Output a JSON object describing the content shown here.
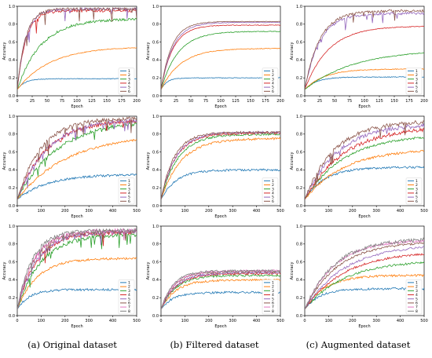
{
  "captions": [
    "(a) Original dataset",
    "(b) Filtered dataset",
    "(c) Augmented dataset"
  ],
  "colors": [
    "#1f77b4",
    "#ff7f0e",
    "#2ca02c",
    "#d62728",
    "#9467bd",
    "#8c564b",
    "#e377c2",
    "#7f7f7f"
  ],
  "chart_data": [
    {
      "type": "line",
      "xlabel": "Epoch",
      "ylabel": "Accuracy",
      "xlim": [
        0,
        200
      ],
      "ylim": [
        0,
        1.0
      ],
      "xticks": [
        "0",
        "25",
        "50",
        "75",
        "100",
        "125",
        "150",
        "175",
        "200"
      ],
      "yticks": [
        "0.0",
        "0.2",
        "0.4",
        "0.6",
        "0.8",
        "1.0"
      ],
      "grid": false,
      "legend": "bottom-right",
      "legend_labels": [
        "1",
        "2",
        "3",
        "4",
        "5",
        "6"
      ],
      "series": [
        {
          "final": 0.19,
          "k": 0.08
        },
        {
          "final": 0.55,
          "k": 0.018
        },
        {
          "final": 0.86,
          "k": 0.025
        },
        {
          "final": 0.95,
          "k": 0.07
        },
        {
          "final": 0.97,
          "k": 0.07
        },
        {
          "final": 0.97,
          "k": 0.075
        }
      ]
    },
    {
      "type": "line",
      "xlabel": "Epoch",
      "ylabel": "Accuracy",
      "xlim": [
        0,
        200
      ],
      "ylim": [
        0,
        1.0
      ],
      "xticks": [
        "0",
        "25",
        "50",
        "75",
        "100",
        "125",
        "150",
        "175",
        "200"
      ],
      "yticks": [
        "0.0",
        "0.2",
        "0.4",
        "0.6",
        "0.8",
        "1.0"
      ],
      "grid": false,
      "legend": "bottom-right",
      "legend_labels": [
        "1",
        "2",
        "3",
        "4",
        "5",
        "6"
      ],
      "series": [
        {
          "final": 0.2,
          "k": 0.1
        },
        {
          "final": 0.53,
          "k": 0.03
        },
        {
          "final": 0.72,
          "k": 0.035
        },
        {
          "final": 0.79,
          "k": 0.05
        },
        {
          "final": 0.82,
          "k": 0.05
        },
        {
          "final": 0.83,
          "k": 0.055
        }
      ]
    },
    {
      "type": "line",
      "xlabel": "Epoch",
      "ylabel": "Accuracy",
      "xlim": [
        0,
        200
      ],
      "ylim": [
        0,
        1.0
      ],
      "xticks": [
        "0",
        "25",
        "50",
        "75",
        "100",
        "125",
        "150",
        "175",
        "200"
      ],
      "yticks": [
        "0.0",
        "0.2",
        "0.4",
        "0.6",
        "0.8",
        "1.0"
      ],
      "grid": false,
      "legend": "bottom-right",
      "legend_labels": [
        "1",
        "2",
        "3",
        "4",
        "5",
        "6"
      ],
      "series": [
        {
          "final": 0.21,
          "k": 0.05
        },
        {
          "final": 0.3,
          "k": 0.03
        },
        {
          "final": 0.52,
          "k": 0.012
        },
        {
          "final": 0.78,
          "k": 0.025
        },
        {
          "final": 0.92,
          "k": 0.04
        },
        {
          "final": 0.95,
          "k": 0.04
        }
      ]
    },
    {
      "type": "line",
      "xlabel": "Epoch",
      "ylabel": "Accuracy",
      "xlim": [
        0,
        500
      ],
      "ylim": [
        0,
        1.0
      ],
      "xticks": [
        "0",
        "100",
        "200",
        "300",
        "400",
        "500"
      ],
      "yticks": [
        "0.0",
        "0.2",
        "0.4",
        "0.6",
        "0.8",
        "1.0"
      ],
      "grid": false,
      "legend": "bottom-right",
      "legend_labels": [
        "1",
        "2",
        "3",
        "4",
        "5",
        "6"
      ],
      "series": [
        {
          "final": 0.35,
          "k": 0.02
        },
        {
          "final": 0.8,
          "k": 0.012
        },
        {
          "final": 0.96,
          "k": 0.015
        },
        {
          "final": 0.96,
          "k": 0.02
        },
        {
          "final": 0.97,
          "k": 0.02
        },
        {
          "final": 0.98,
          "k": 0.025
        }
      ]
    },
    {
      "type": "line",
      "xlabel": "Epoch",
      "ylabel": "Accuracy",
      "xlim": [
        0,
        500
      ],
      "ylim": [
        0,
        1.0
      ],
      "xticks": [
        "0",
        "100",
        "200",
        "300",
        "400",
        "500"
      ],
      "yticks": [
        "0.0",
        "0.2",
        "0.4",
        "0.6",
        "0.8",
        "1.0"
      ],
      "grid": false,
      "legend": "bottom-right",
      "legend_labels": [
        "1",
        "2",
        "3",
        "4",
        "5",
        "6"
      ],
      "series": [
        {
          "final": 0.4,
          "k": 0.04
        },
        {
          "final": 0.75,
          "k": 0.03
        },
        {
          "final": 0.8,
          "k": 0.035
        },
        {
          "final": 0.81,
          "k": 0.04
        },
        {
          "final": 0.82,
          "k": 0.04
        },
        {
          "final": 0.82,
          "k": 0.045
        }
      ]
    },
    {
      "type": "line",
      "xlabel": "Epoch",
      "ylabel": "Accuracy",
      "xlim": [
        0,
        500
      ],
      "ylim": [
        0,
        1.0
      ],
      "xticks": [
        "0",
        "100",
        "200",
        "300",
        "400",
        "500"
      ],
      "yticks": [
        "0.0",
        "0.2",
        "0.4",
        "0.6",
        "0.8",
        "1.0"
      ],
      "grid": false,
      "legend": "bottom-right",
      "legend_labels": [
        "1",
        "2",
        "3",
        "4",
        "5",
        "6"
      ],
      "series": [
        {
          "final": 0.43,
          "k": 0.03
        },
        {
          "final": 0.64,
          "k": 0.015
        },
        {
          "final": 0.8,
          "k": 0.015
        },
        {
          "final": 0.89,
          "k": 0.015
        },
        {
          "final": 0.92,
          "k": 0.018
        },
        {
          "final": 0.95,
          "k": 0.02
        }
      ]
    },
    {
      "type": "line",
      "xlabel": "Epoch",
      "ylabel": "Accuracy",
      "xlim": [
        0,
        500
      ],
      "ylim": [
        0,
        1.0
      ],
      "xticks": [
        "0",
        "100",
        "200",
        "300",
        "400",
        "500"
      ],
      "yticks": [
        "0.0",
        "0.2",
        "0.4",
        "0.6",
        "0.8",
        "1.0"
      ],
      "grid": false,
      "legend": "bottom-right",
      "legend_labels": [
        "1",
        "2",
        "3",
        "4",
        "5",
        "6",
        "7",
        "8"
      ],
      "series": [
        {
          "final": 0.29,
          "k": 0.05
        },
        {
          "final": 0.64,
          "k": 0.03
        },
        {
          "final": 0.91,
          "k": 0.025
        },
        {
          "final": 0.93,
          "k": 0.03
        },
        {
          "final": 0.94,
          "k": 0.03
        },
        {
          "final": 0.94,
          "k": 0.035
        },
        {
          "final": 0.95,
          "k": 0.035
        },
        {
          "final": 0.95,
          "k": 0.04
        }
      ]
    },
    {
      "type": "line",
      "xlabel": "Epoch",
      "ylabel": "Accuracy",
      "xlim": [
        0,
        500
      ],
      "ylim": [
        0,
        1.0
      ],
      "xticks": [
        "0",
        "100",
        "200",
        "300",
        "400",
        "500"
      ],
      "yticks": [
        "0.0",
        "0.2",
        "0.4",
        "0.6",
        "0.8",
        "1.0"
      ],
      "grid": false,
      "legend": "bottom-right",
      "legend_labels": [
        "1",
        "2",
        "3",
        "4",
        "5",
        "6",
        "7",
        "8"
      ],
      "series": [
        {
          "final": 0.26,
          "k": 0.05
        },
        {
          "final": 0.4,
          "k": 0.04
        },
        {
          "final": 0.45,
          "k": 0.04
        },
        {
          "final": 0.47,
          "k": 0.04
        },
        {
          "final": 0.48,
          "k": 0.04
        },
        {
          "final": 0.49,
          "k": 0.045
        },
        {
          "final": 0.5,
          "k": 0.045
        },
        {
          "final": 0.5,
          "k": 0.05
        }
      ]
    },
    {
      "type": "line",
      "xlabel": "Epoch",
      "ylabel": "Accuracy",
      "xlim": [
        0,
        500
      ],
      "ylim": [
        0,
        1.0
      ],
      "xticks": [
        "0",
        "100",
        "200",
        "300",
        "400",
        "500"
      ],
      "yticks": [
        "0.0",
        "0.2",
        "0.4",
        "0.6",
        "0.8",
        "1.0"
      ],
      "grid": false,
      "legend": "bottom-right",
      "legend_labels": [
        "1",
        "2",
        "3",
        "4",
        "5",
        "6",
        "7",
        "8"
      ],
      "series": [
        {
          "final": 0.3,
          "k": 0.04
        },
        {
          "final": 0.45,
          "k": 0.03
        },
        {
          "final": 0.62,
          "k": 0.015
        },
        {
          "final": 0.72,
          "k": 0.015
        },
        {
          "final": 0.8,
          "k": 0.015
        },
        {
          "final": 0.83,
          "k": 0.018
        },
        {
          "final": 0.85,
          "k": 0.02
        },
        {
          "final": 0.86,
          "k": 0.02
        }
      ]
    }
  ]
}
